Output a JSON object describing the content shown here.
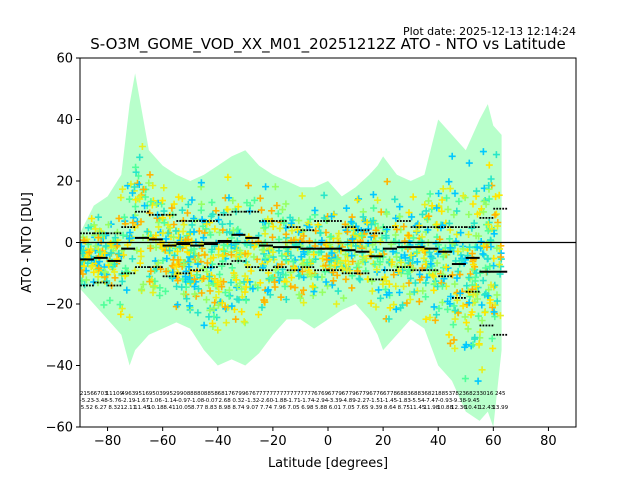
{
  "header": {
    "plot_date": "Plot date: 2025-12-13 12:14:24",
    "title": "S-O3M_GOME_VOD_XX_M01_20251212Z ATO - NTO vs Latitude"
  },
  "colors": {
    "background": "#ffffff",
    "zero_line": "#000000",
    "scatter_palette": [
      "#0000c8",
      "#0a64ff",
      "#00c8ff",
      "#28e6c8",
      "#50ff9a",
      "#96ff64",
      "#e6f020",
      "#ffe600",
      "#ffb400"
    ]
  },
  "chart_data": {
    "type": "scatter",
    "title": "S-O3M_GOME_VOD_XX_M01_20251212Z ATO - NTO vs Latitude",
    "xlabel": "Latitude [degrees]",
    "ylabel": "ATO - NTO [DU]",
    "xlim": [
      -90,
      90
    ],
    "ylim": [
      -60,
      60
    ],
    "xticks": [
      "−80",
      "−60",
      "−40",
      "−20",
      "0",
      "20",
      "40",
      "60",
      "80"
    ],
    "yticks": [
      "−60",
      "−40",
      "−20",
      "0",
      "20",
      "40",
      "60"
    ],
    "xtick_values": [
      -80,
      -60,
      -40,
      -20,
      0,
      20,
      40,
      60,
      80
    ],
    "ytick_values": [
      -60,
      -40,
      -20,
      0,
      20,
      40,
      60
    ],
    "marker": "+",
    "grid": false,
    "zero_line": 0,
    "envelope": {
      "note": "scatter cloud extent per latitude (data units)",
      "lat": [
        -90,
        -85,
        -80,
        -75,
        -72,
        -70,
        -65,
        -60,
        -55,
        -50,
        -45,
        -40,
        -35,
        -30,
        -25,
        -20,
        -15,
        -10,
        -5,
        0,
        5,
        10,
        15,
        18,
        20,
        25,
        30,
        35,
        40,
        45,
        50,
        55,
        58,
        60,
        63
      ],
      "upper": [
        3,
        12,
        15,
        22,
        45,
        55,
        30,
        25,
        22,
        20,
        22,
        25,
        28,
        30,
        25,
        22,
        20,
        18,
        18,
        20,
        15,
        18,
        22,
        25,
        28,
        22,
        20,
        22,
        40,
        35,
        30,
        40,
        45,
        38,
        35
      ],
      "lower": [
        -15,
        -20,
        -25,
        -30,
        -40,
        -35,
        -30,
        -28,
        -26,
        -28,
        -35,
        -40,
        -38,
        -40,
        -36,
        -30,
        -25,
        -25,
        -28,
        -25,
        -22,
        -20,
        -25,
        -30,
        -35,
        -30,
        -25,
        -28,
        -40,
        -45,
        -55,
        -58,
        -55,
        -60,
        -35
      ]
    },
    "series": [
      {
        "marker": "median-bar",
        "lat": [
          -87.5,
          -82.5,
          -77.5,
          -72.5,
          -67.5,
          -62.5,
          -57.5,
          -52.5,
          -47.5,
          -42.5,
          -37.5,
          -32.5,
          -27.5,
          -22.5,
          -17.5,
          -12.5,
          -7.5,
          -2.5,
          2.5,
          7.5,
          12.5,
          17.5,
          22.5,
          27.5,
          32.5,
          37.5,
          42.5,
          47.5,
          52.5,
          57.5,
          62.5
        ],
        "values": [
          -5.5,
          -5,
          -6,
          -2,
          1.5,
          1,
          -1,
          -0.5,
          -1,
          -0.5,
          0.5,
          2.5,
          1.5,
          -1,
          -1.5,
          -1.5,
          -2,
          -2,
          -2,
          -2.5,
          -3,
          -4.5,
          -2,
          -1.5,
          -1.5,
          -2,
          -3,
          -7,
          -5,
          -9.5,
          -9.5
        ]
      },
      {
        "marker": "std-dots",
        "lat": [
          -87.5,
          -82.5,
          -77.5,
          -72.5,
          -67.5,
          -62.5,
          -57.5,
          -52.5,
          -47.5,
          -42.5,
          -37.5,
          -32.5,
          -27.5,
          -22.5,
          -17.5,
          -12.5,
          -7.5,
          -2.5,
          2.5,
          7.5,
          12.5,
          17.5,
          22.5,
          27.5,
          32.5,
          37.5,
          42.5,
          47.5,
          52.5,
          57.5,
          62.5
        ],
        "upper": [
          3,
          3,
          3,
          5,
          10,
          9,
          9,
          7,
          7,
          7,
          9,
          10,
          10,
          7,
          7,
          5,
          4,
          7,
          7,
          5,
          4,
          3,
          5,
          7,
          5,
          5,
          5,
          5,
          5,
          8,
          11
        ],
        "lower": [
          -14,
          -13,
          -14,
          -10,
          -8,
          -8,
          -11,
          -10,
          -9,
          -8,
          -7,
          -6,
          -8,
          -9,
          -8,
          -9,
          -8,
          -9,
          -9,
          -10,
          -10,
          -12,
          -9,
          -8,
          -9,
          -9,
          -11,
          -18,
          -16,
          -27,
          -30
        ]
      }
    ],
    "stats_rows": [
      [
        "2156",
        "6703",
        "11109",
        "4963",
        "9516",
        "9503",
        "9952",
        "9908",
        "8880",
        "8858",
        "6817",
        "6799",
        "6767",
        "7777",
        "7777",
        "7777",
        "7777",
        "6769",
        "6779",
        "6779",
        "6779",
        "6776",
        "6778",
        "6883",
        "6883",
        "6821",
        "8853",
        "7823",
        "6823",
        "3016",
        "245"
      ],
      [
        "-5.23",
        "-3.48",
        "-5.76",
        "-2.19",
        "-1.67",
        "1.06",
        "-1.14",
        "-0.97",
        "-1.08",
        "-0.07",
        "2.68",
        "0.32",
        "-1.32",
        "-2.60",
        "-1.88",
        "-1.71",
        "-1.74",
        "-2.94",
        "-3.39",
        "-4.89",
        "-2.27",
        "-1.51",
        "-1.45",
        "-1.83",
        "-5.54",
        "-7.47",
        "-0.93",
        "-9.38",
        "-9.45",
        "",
        ""
      ],
      [
        "5.52",
        "6.27",
        "8.32",
        "12.11",
        "11.45",
        "10.18",
        "8.41",
        "10.05",
        "8.77",
        "8.83",
        "8.98",
        "8.74",
        "9.07",
        "7.74",
        "7.96",
        "7.05",
        "6.98",
        "5.88",
        "6.01",
        "7.05",
        "7.65",
        "9.39",
        "8.64",
        "8.75",
        "11.45",
        "11.98",
        "10.88",
        "12.36",
        "10.41",
        "12.43",
        "13.99"
      ]
    ]
  }
}
